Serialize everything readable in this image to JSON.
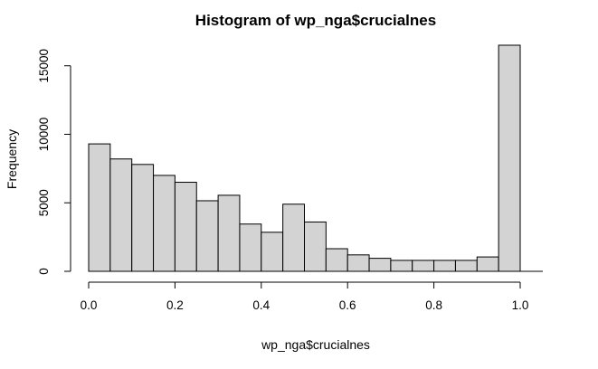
{
  "chart_data": {
    "type": "bar",
    "title": "Histogram of wp_nga$crucialnes",
    "xlabel": "wp_nga$crucialnes",
    "ylabel": "Frequency",
    "xlim": [
      0,
      1
    ],
    "ylim": [
      0,
      16500
    ],
    "bin_width": 0.05,
    "bins_start": [
      0.0,
      0.05,
      0.1,
      0.15,
      0.2,
      0.25,
      0.3,
      0.35,
      0.4,
      0.45,
      0.5,
      0.55,
      0.6,
      0.65,
      0.7,
      0.75,
      0.8,
      0.85,
      0.9,
      0.95
    ],
    "values": [
      9300,
      8200,
      7800,
      7000,
      6500,
      5150,
      5550,
      3450,
      2850,
      4900,
      3600,
      1650,
      1200,
      950,
      800,
      800,
      800,
      800,
      1050,
      16500
    ],
    "x_ticks": [
      0.0,
      0.2,
      0.4,
      0.6,
      0.8,
      1.0
    ],
    "x_tick_labels": [
      "0.0",
      "0.2",
      "0.4",
      "0.6",
      "0.8",
      "1.0"
    ],
    "y_ticks": [
      0,
      5000,
      10000,
      15000
    ],
    "y_tick_labels": [
      "0",
      "5000",
      "10000",
      "15000"
    ],
    "bar_color": "#d3d3d3",
    "edge_color": "#000000",
    "grid": false,
    "legend": "none"
  }
}
